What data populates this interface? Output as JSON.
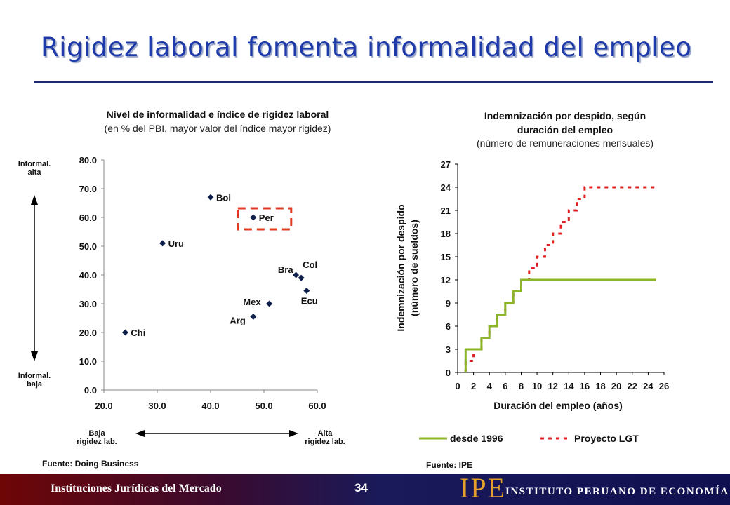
{
  "slide": {
    "title": "Rigidez laboral fomenta informalidad del empleo",
    "footer_left": "Instituciones Jurídicas del Mercado",
    "page_number": "34",
    "logo_text": "IPE",
    "logo_name": "INSTITUTO PERUANO DE ECONOMÍA",
    "colors": {
      "title": "#1e3aa8",
      "rule": "#1a2a6c",
      "logo": "#e3a12b"
    }
  },
  "left_panel": {
    "title": "Nivel de informalidad e índice de rigidez laboral",
    "subtitle": "(en % del PBI, mayor valor del índice mayor rigidez)",
    "y_top_label": [
      "Informal.",
      "alta"
    ],
    "y_bottom_label": [
      "Informal.",
      "baja"
    ],
    "x_left_label": [
      "Baja",
      "rigidez lab."
    ],
    "x_right_label": [
      "Alta",
      "rigidez lab."
    ],
    "source": "Fuente: Doing Business"
  },
  "right_panel": {
    "title": [
      "Indemnización por despido, según",
      "duración del empleo"
    ],
    "subtitle": "(número de remuneraciones mensuales)",
    "source": "Fuente: IPE"
  },
  "chart_data": [
    {
      "type": "scatter",
      "title": "Nivel de informalidad e índice de rigidez laboral",
      "subtitle": "(en % del PBI, mayor valor del índice mayor rigidez)",
      "xlim": [
        20,
        60
      ],
      "ylim": [
        0,
        80
      ],
      "xticks": [
        "20.0",
        "30.0",
        "40.0",
        "50.0",
        "60.0"
      ],
      "yticks": [
        "0.0",
        "10.0",
        "20.0",
        "30.0",
        "40.0",
        "50.0",
        "60.0",
        "70.0",
        "80.0"
      ],
      "marker_color": "#0d1f4a",
      "points": [
        {
          "label": "Bol",
          "x": 40,
          "y": 67
        },
        {
          "label": "Per",
          "x": 48,
          "y": 60,
          "highlight": true
        },
        {
          "label": "Uru",
          "x": 31,
          "y": 51
        },
        {
          "label": "Bra",
          "x": 56,
          "y": 40
        },
        {
          "label": "Col",
          "x": 57,
          "y": 39
        },
        {
          "label": "Ecu",
          "x": 58,
          "y": 34.5
        },
        {
          "label": "Mex",
          "x": 51,
          "y": 30
        },
        {
          "label": "Arg",
          "x": 48,
          "y": 25.5
        },
        {
          "label": "Chi",
          "x": 24,
          "y": 20
        }
      ],
      "highlight_color": "#e23b22"
    },
    {
      "type": "line",
      "title": "Indemnización por despido, según duración del empleo",
      "subtitle": "(número de remuneraciones mensuales)",
      "xlabel": "Duración del empleo (años)",
      "ylabel": [
        "Indemnización por despido",
        "(número de sueldos)"
      ],
      "xlim": [
        0,
        26
      ],
      "ylim": [
        0,
        27
      ],
      "xticks": [
        "0",
        "2",
        "4",
        "6",
        "8",
        "10",
        "12",
        "14",
        "16",
        "18",
        "20",
        "22",
        "24",
        "26"
      ],
      "yticks": [
        "0",
        "3",
        "6",
        "9",
        "12",
        "15",
        "18",
        "21",
        "24",
        "27"
      ],
      "legend_position": "bottom",
      "series": [
        {
          "name": "desde 1996",
          "style": "solid",
          "color": "#8db52a",
          "points": [
            [
              1,
              0
            ],
            [
              1,
              3
            ],
            [
              3,
              3
            ],
            [
              3,
              4.5
            ],
            [
              4,
              4.5
            ],
            [
              4,
              6
            ],
            [
              5,
              6
            ],
            [
              5,
              7.5
            ],
            [
              6,
              7.5
            ],
            [
              6,
              9
            ],
            [
              7,
              9
            ],
            [
              7,
              10.5
            ],
            [
              8,
              10.5
            ],
            [
              8,
              12
            ],
            [
              25,
              12
            ]
          ]
        },
        {
          "name": "Proyecto LGT",
          "style": "dashed",
          "color": "#e02020",
          "points": [
            [
              1,
              0
            ],
            [
              1,
              1.5
            ],
            [
              2,
              1.5
            ],
            [
              2,
              3
            ],
            [
              3,
              3
            ],
            [
              3,
              4.5
            ],
            [
              4,
              4.5
            ],
            [
              4,
              6
            ],
            [
              5,
              6
            ],
            [
              5,
              7.5
            ],
            [
              6,
              7.5
            ],
            [
              6,
              9
            ],
            [
              7,
              9
            ],
            [
              7,
              10.5
            ],
            [
              8,
              10.5
            ],
            [
              8,
              12
            ],
            [
              9,
              12
            ],
            [
              9,
              13.5
            ],
            [
              10,
              13.5
            ],
            [
              10,
              15
            ],
            [
              11,
              15
            ],
            [
              11,
              16.5
            ],
            [
              12,
              16.5
            ],
            [
              12,
              18
            ],
            [
              13,
              18
            ],
            [
              13,
              19.5
            ],
            [
              14,
              19.5
            ],
            [
              14,
              21
            ],
            [
              15,
              21
            ],
            [
              15,
              22.5
            ],
            [
              16,
              22.5
            ],
            [
              16,
              24
            ],
            [
              25,
              24
            ]
          ]
        }
      ]
    }
  ]
}
